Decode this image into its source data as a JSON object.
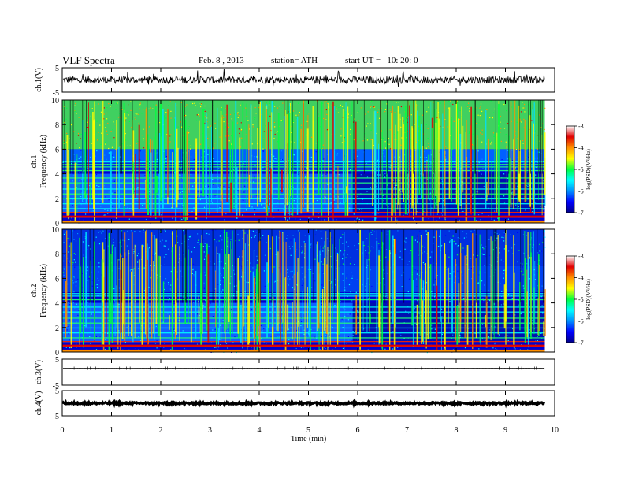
{
  "header": {
    "title": "VLF Spectra",
    "date": "Feb. 8 , 2013",
    "station": "station= ATH",
    "start_label": "start UT =",
    "start_time": "10: 20: 0"
  },
  "colors": {
    "bar_stops": [
      "#00008a",
      "#0000ff",
      "#0090ff",
      "#00ffff",
      "#00ff40",
      "#ffff00",
      "#ff9000",
      "#e00000",
      "#ffffff"
    ]
  },
  "chart_data": [
    {
      "type": "line",
      "panel": "ch1_waveform",
      "ylabel": "ch.1(V)",
      "ylim": [
        -5,
        5
      ],
      "yticks": [
        "5",
        "-5"
      ],
      "xlim": [
        0,
        10
      ],
      "level": 0,
      "noise_amplitude": 1.5,
      "spikes": true
    },
    {
      "type": "heatmap",
      "panel": "ch1_spectrogram",
      "ylabel_line1": "ch.1",
      "ylabel_line2": "Frequency (kHz)",
      "ylim": [
        0,
        10
      ],
      "yticks": [
        "0",
        "2",
        "4",
        "6",
        "8",
        "10"
      ],
      "xlim": [
        0,
        10
      ],
      "data_end_min": 9.8,
      "colorbar": {
        "label": "log(PSD)(V²/Hz)",
        "range": [
          -7,
          -3
        ],
        "ticks": [
          "-3",
          "-4",
          "-5",
          "-6",
          "-7"
        ]
      }
    },
    {
      "type": "heatmap",
      "panel": "ch2_spectrogram",
      "ylabel_line1": "ch.2",
      "ylabel_line2": "Frequency (kHz)",
      "ylim": [
        0,
        10
      ],
      "yticks": [
        "0",
        "2",
        "4",
        "6",
        "8",
        "10"
      ],
      "xlim": [
        0,
        10
      ],
      "data_end_min": 9.8,
      "colorbar": {
        "label": "log(PSD)(V²/Hz)",
        "range": [
          -7,
          -3
        ],
        "ticks": [
          "-3",
          "-4",
          "-5",
          "-6",
          "-7"
        ]
      }
    },
    {
      "type": "line",
      "panel": "ch3_waveform",
      "ylabel": "ch.3(V)",
      "ylim": [
        -5,
        5
      ],
      "yticks": [
        "5",
        "-5"
      ],
      "xlim": [
        0,
        10
      ],
      "level": 1.5,
      "noise_amplitude": 0.05,
      "spikes": false
    },
    {
      "type": "line",
      "panel": "ch4_waveform",
      "ylabel": "ch.4(V)",
      "ylim": [
        -5,
        5
      ],
      "yticks": [
        "5",
        "-5"
      ],
      "xlim": [
        0,
        10
      ],
      "level": 0,
      "noise_amplitude": 0.4,
      "spikes": false
    }
  ],
  "xaxis": {
    "label": "Time (min)",
    "ticks": [
      "0",
      "1",
      "2",
      "3",
      "4",
      "5",
      "6",
      "7",
      "8",
      "9",
      "10"
    ]
  }
}
